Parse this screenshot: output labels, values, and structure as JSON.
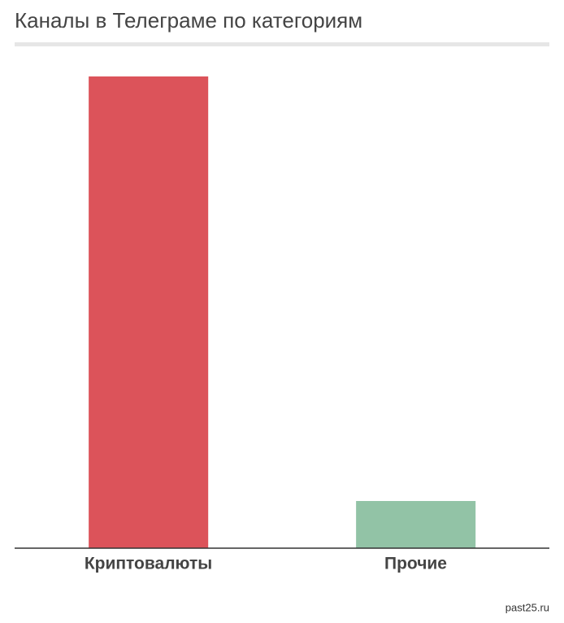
{
  "chart_data": {
    "type": "bar",
    "title": "Каналы в Телеграме по категориям",
    "categories": [
      "Криптовалюты",
      "Прочие"
    ],
    "values": [
      100,
      10
    ],
    "colors": [
      "#dc535a",
      "#92c3a6"
    ],
    "ylim": [
      0,
      100
    ],
    "grid": false,
    "source": "past25.ru"
  }
}
